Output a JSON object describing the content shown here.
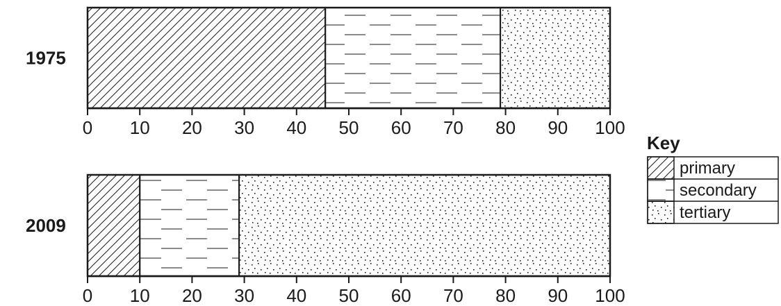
{
  "chart_data": {
    "type": "bar",
    "orientation": "horizontal-stacked",
    "categories": [
      "1975",
      "2009"
    ],
    "series": [
      {
        "name": "primary",
        "pattern": "diagonal-hatch",
        "values": [
          45.5,
          10
        ]
      },
      {
        "name": "secondary",
        "pattern": "horizontal-dashes",
        "values": [
          33.5,
          19
        ]
      },
      {
        "name": "tertiary",
        "pattern": "dots",
        "values": [
          21,
          71
        ]
      }
    ],
    "xlim": [
      0,
      100
    ],
    "x_ticks": [
      "0",
      "10",
      "20",
      "30",
      "40",
      "50",
      "60",
      "70",
      "80",
      "90",
      "100"
    ],
    "legend": {
      "title": "Key",
      "placement": "right"
    },
    "grid": false,
    "colors": {
      "ink": "#1a1a1a",
      "background": "#ffffff"
    }
  }
}
